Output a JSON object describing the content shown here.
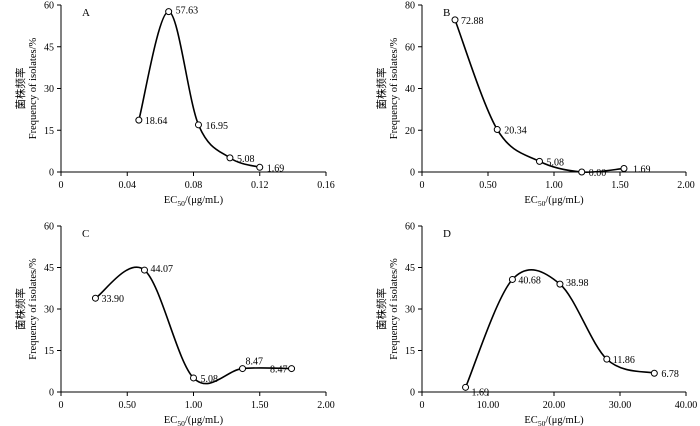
{
  "figure": {
    "ylabel_cn": "菌株频率",
    "ylabel_en": "Frequency of isolates/%",
    "xlabel_main": "EC",
    "xlabel_sub": "50",
    "xlabel_unit": "/(μg/mL)"
  },
  "chart_data": [
    {
      "type": "line",
      "panel": "A",
      "x": [
        0.047,
        0.065,
        0.083,
        0.102,
        0.12
      ],
      "y": [
        18.64,
        57.63,
        16.95,
        5.08,
        1.69
      ],
      "labels": [
        "18.64",
        "57.63",
        "16.95",
        "5.08",
        "1.69"
      ],
      "xticks": [
        0,
        0.04,
        0.08,
        0.12,
        0.16
      ],
      "xticklabels": [
        "0",
        "0.04",
        "0.08",
        "0.12",
        "0.16"
      ],
      "yticks": [
        0,
        15,
        30,
        45,
        60
      ],
      "yticklabels": [
        "0",
        "15",
        "30",
        "45",
        "60"
      ],
      "xlim": [
        0,
        0.16
      ],
      "ylim": [
        0,
        60
      ]
    },
    {
      "type": "line",
      "panel": "B",
      "x": [
        0.25,
        0.57,
        0.89,
        1.21,
        1.53
      ],
      "y": [
        72.88,
        20.34,
        5.08,
        0.0,
        1.69
      ],
      "labels": [
        "72.88",
        "20.34",
        "5.08",
        "0.00",
        "1.69"
      ],
      "xticks": [
        0,
        0.5,
        1.0,
        1.5,
        2.0
      ],
      "xticklabels": [
        "0",
        "0.50",
        "1.00",
        "1.50",
        "2.00"
      ],
      "yticks": [
        0,
        20,
        40,
        60,
        80
      ],
      "yticklabels": [
        "0",
        "20",
        "40",
        "60",
        "80"
      ],
      "xlim": [
        0,
        2.0
      ],
      "ylim": [
        0,
        80
      ]
    },
    {
      "type": "line",
      "panel": "C",
      "x": [
        0.26,
        0.63,
        1.0,
        1.37,
        1.74
      ],
      "y": [
        33.9,
        44.07,
        5.08,
        8.47,
        8.47
      ],
      "labels": [
        "33.90",
        "44.07",
        "5.08",
        "8.47",
        "8.47"
      ],
      "xticks": [
        0,
        0.5,
        1.0,
        1.5,
        2.0
      ],
      "xticklabels": [
        "0",
        "0.50",
        "1.00",
        "1.50",
        "2.00"
      ],
      "yticks": [
        0,
        15,
        30,
        45,
        60
      ],
      "yticklabels": [
        "0",
        "15",
        "30",
        "45",
        "60"
      ],
      "xlim": [
        0,
        2.0
      ],
      "ylim": [
        0,
        60
      ]
    },
    {
      "type": "line",
      "panel": "D",
      "x": [
        6.6,
        13.7,
        20.9,
        28.0,
        35.2
      ],
      "y": [
        1.69,
        40.68,
        38.98,
        11.86,
        6.78
      ],
      "labels": [
        "1.69",
        "40.68",
        "38.98",
        "11.86",
        "6.78"
      ],
      "xticks": [
        0,
        10,
        20,
        30,
        40
      ],
      "xticklabels": [
        "0",
        "10.00",
        "20.00",
        "30.00",
        "40.00"
      ],
      "yticks": [
        0,
        15,
        30,
        45,
        60
      ],
      "yticklabels": [
        "0",
        "15",
        "30",
        "45",
        "60"
      ],
      "xlim": [
        0,
        40
      ],
      "ylim": [
        0,
        60
      ]
    }
  ]
}
